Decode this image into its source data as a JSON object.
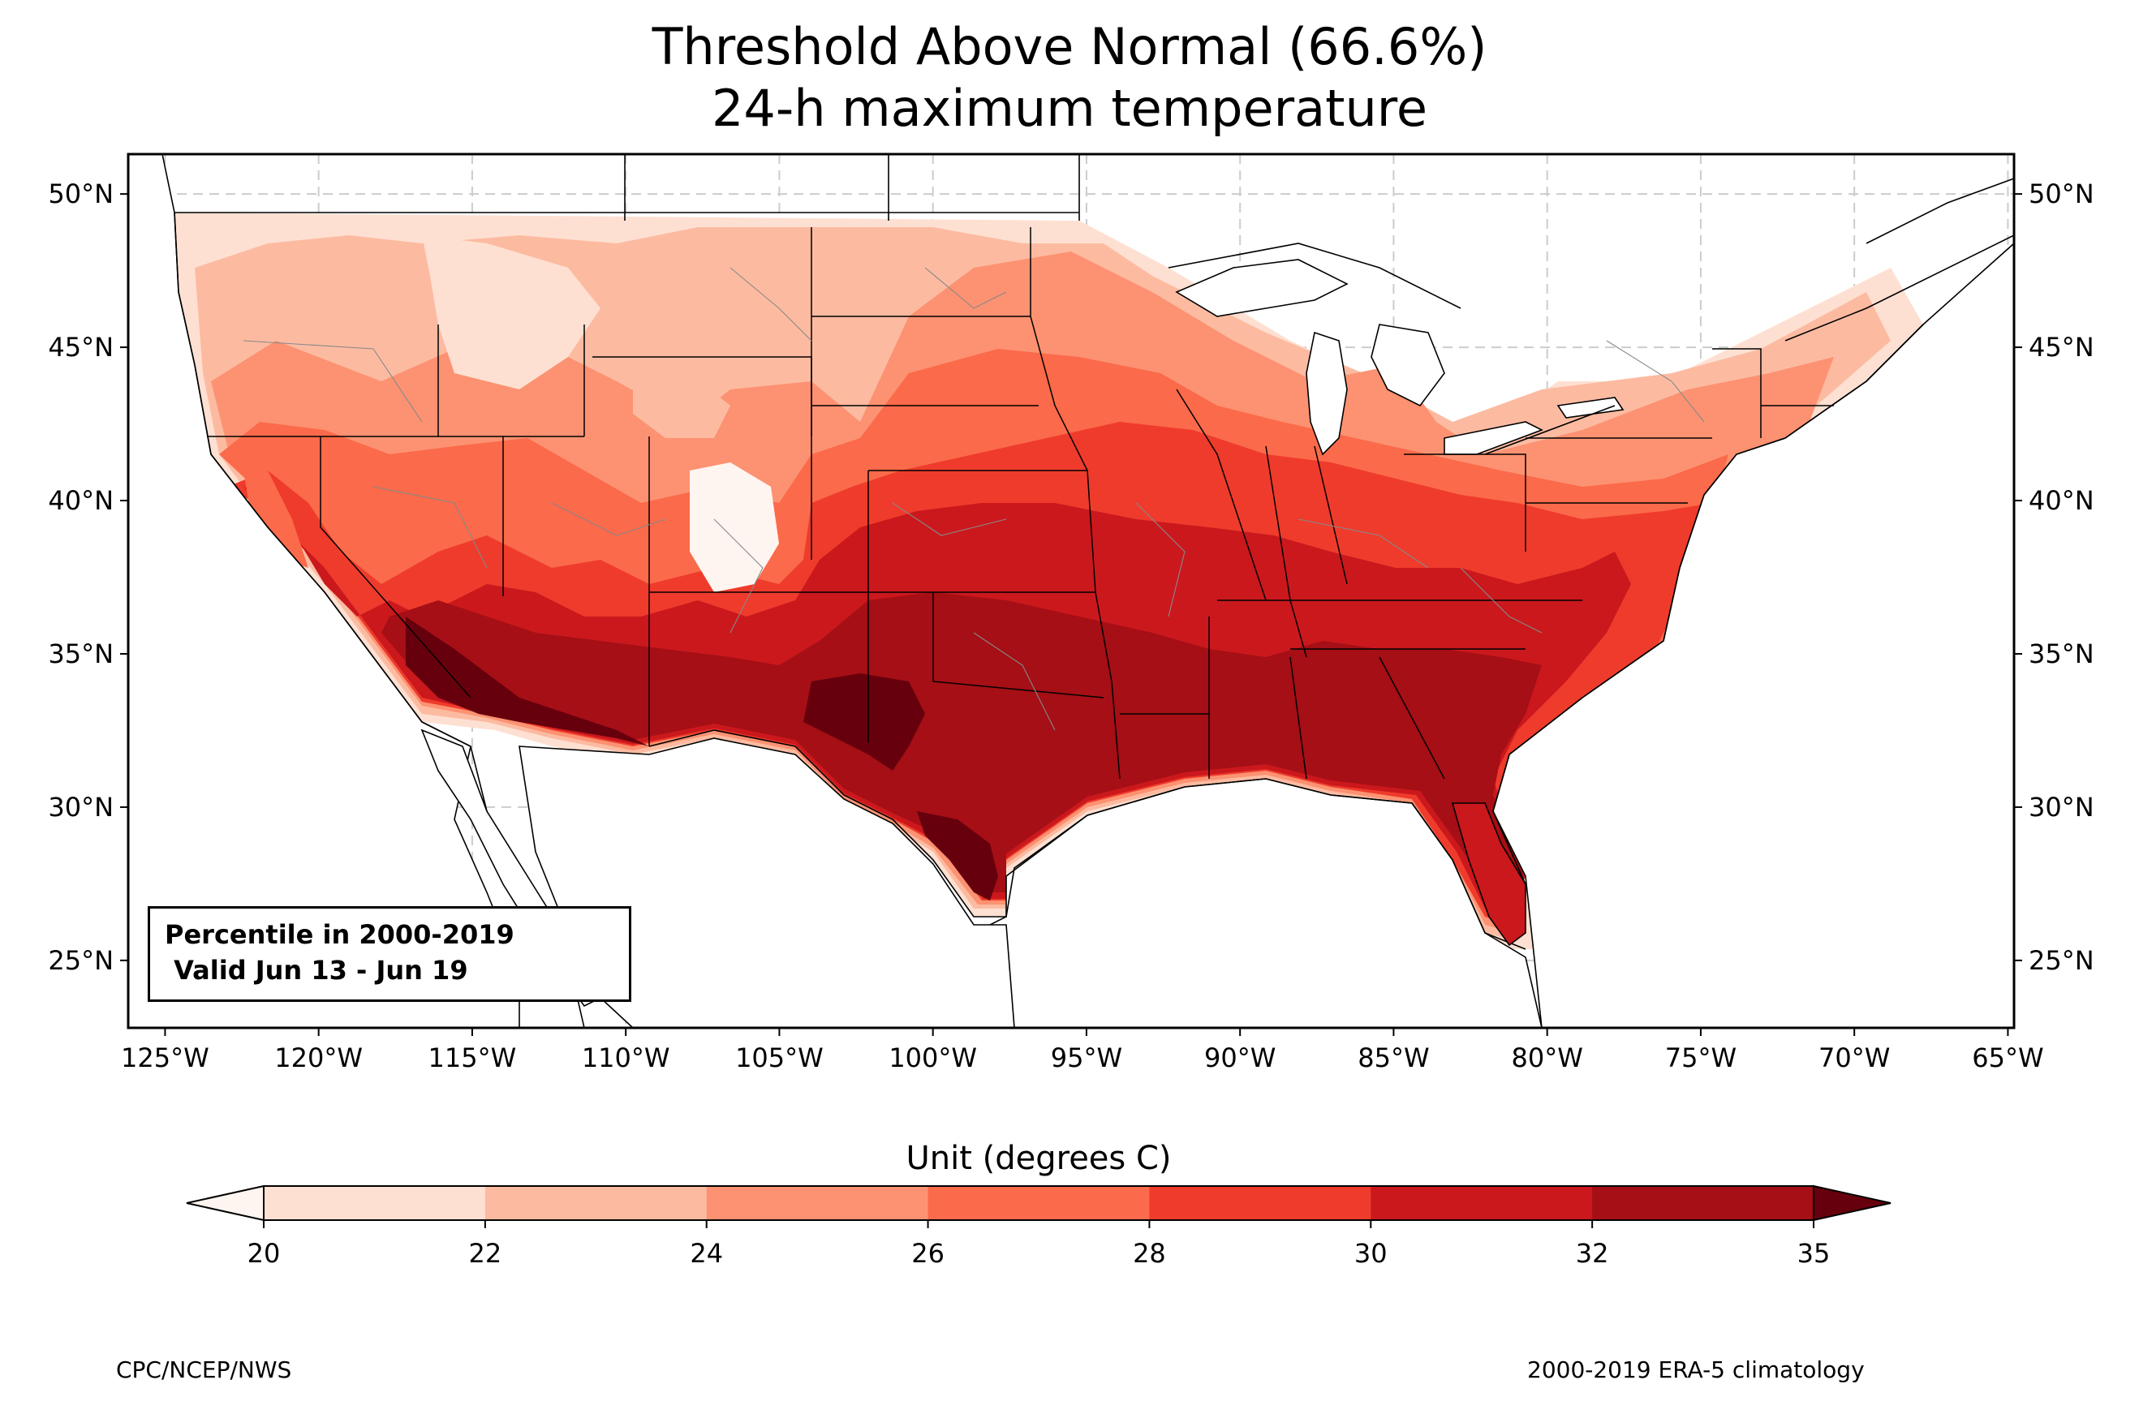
{
  "title": {
    "line1": "Threshold Above Normal (66.6%)",
    "line2": "24-h maximum temperature"
  },
  "map": {
    "lon_range": [
      -126.2,
      -64.8
    ],
    "lat_range": [
      22.8,
      51.3
    ],
    "lon_ticks": [
      "125°W",
      "120°W",
      "115°W",
      "110°W",
      "105°W",
      "100°W",
      "95°W",
      "90°W",
      "85°W",
      "80°W",
      "75°W",
      "70°W",
      "65°W"
    ],
    "lon_tick_values": [
      -125,
      -120,
      -115,
      -110,
      -105,
      -100,
      -95,
      -90,
      -85,
      -80,
      -75,
      -70,
      -65
    ],
    "lat_ticks": [
      "50°N",
      "45°N",
      "40°N",
      "35°N",
      "30°N",
      "25°N"
    ],
    "lat_tick_values": [
      50,
      45,
      40,
      35,
      30,
      25
    ],
    "gridlines": true,
    "fields_degC": [
      {
        "region": "Pacific Northwest / Northern Rockies",
        "value_range": "20-24"
      },
      {
        "region": "Northern Plains",
        "value_range": "24-28"
      },
      {
        "region": "Great Lakes / Northeast",
        "value_range": "24-28"
      },
      {
        "region": "Central Plains / Midwest",
        "value_range": "28-32"
      },
      {
        "region": "Southern Plains / Southeast",
        "value_range": "30-35"
      },
      {
        "region": "Desert Southwest / South Texas",
        "value_range": ">35"
      }
    ]
  },
  "info_box": {
    "line1": "Percentile in 2000-2019",
    "line2": " Valid Jun 13 - Jun 19"
  },
  "colorbar": {
    "label": "Unit (degrees C)",
    "ticks": [
      "20",
      "22",
      "24",
      "26",
      "28",
      "30",
      "32",
      "35"
    ],
    "colors": [
      "#fee0d2",
      "#fcbba1",
      "#fc9272",
      "#fb6a4a",
      "#ef3b2c",
      "#cb181d",
      "#a50f15",
      "#67000d"
    ],
    "under_color": "#fff5f0",
    "over_color": "#67000d"
  },
  "footer": {
    "left": "CPC/NCEP/NWS",
    "right": "2000-2019 ERA-5 climatology"
  }
}
